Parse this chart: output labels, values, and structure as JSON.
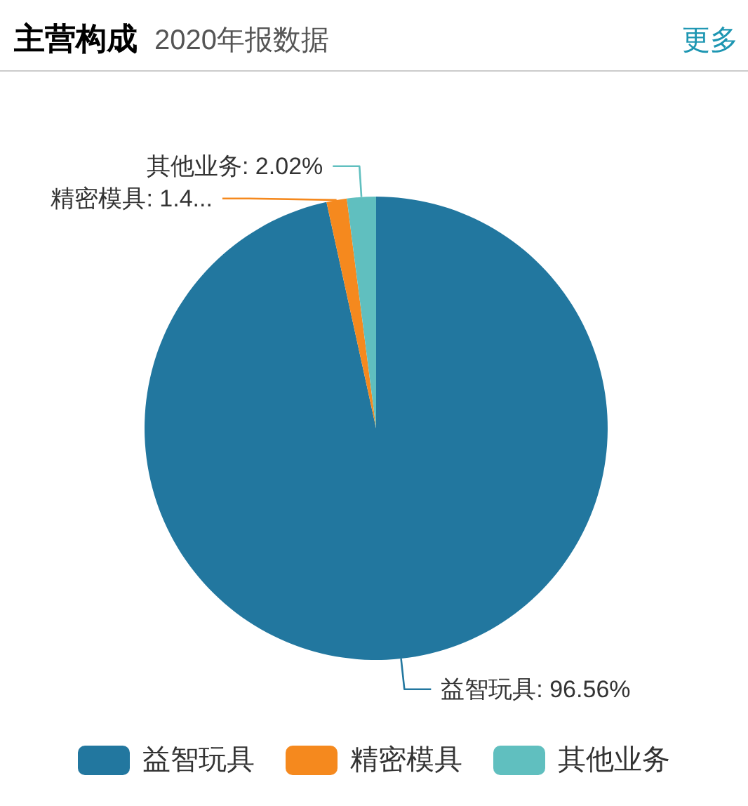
{
  "chart_data": {
    "type": "pie",
    "title": "主营构成",
    "subtitle": "2020年报数据",
    "annotations": [
      "更多"
    ],
    "categories": [
      "益智玩具",
      "精密模具",
      "其他业务"
    ],
    "values": [
      96.56,
      1.42,
      2.02
    ],
    "colors": [
      "#22779f",
      "#f5891e",
      "#60bfbf"
    ],
    "value_labels": [
      "益智玩具: 96.56%",
      "精密模具: 1.4...",
      "其他业务: 2.02%"
    ],
    "legend": "bottom"
  }
}
